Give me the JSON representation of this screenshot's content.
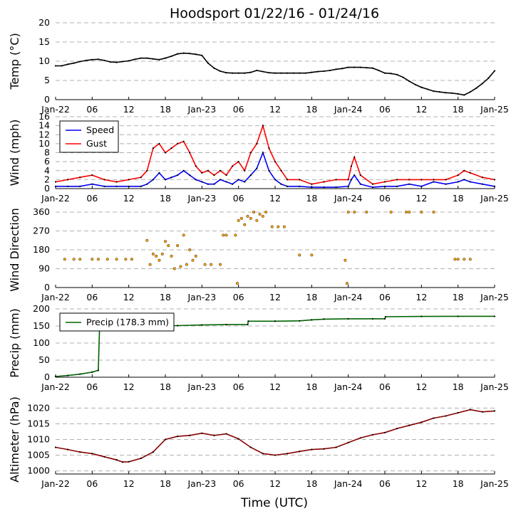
{
  "title": "Hoodsport 01/22/16 - 01/24/16",
  "xlabel": "Time (UTC)",
  "x_ticks": [
    "Jan-22",
    "06",
    "12",
    "18",
    "Jan-23",
    "06",
    "12",
    "18",
    "Jan-24",
    "06",
    "12",
    "18",
    "Jan-25"
  ],
  "chart_data": [
    {
      "type": "line",
      "ylabel": "Temp (°C)",
      "ylim": [
        0,
        20
      ],
      "yticks": [
        0,
        5,
        10,
        15,
        20
      ],
      "grid": true,
      "x_unit": "hours since Jan-22 00 UTC",
      "series": [
        {
          "name": "",
          "color": "#000000",
          "x": [
            0,
            1,
            2,
            3,
            4,
            5,
            6,
            7,
            8,
            9,
            10,
            11,
            12,
            13,
            14,
            15,
            16,
            17,
            18,
            19,
            20,
            21,
            22,
            23,
            24,
            25,
            26,
            27,
            28,
            29,
            30,
            31,
            32,
            33,
            34,
            35,
            36,
            37,
            38,
            39,
            40,
            41,
            42,
            43,
            44,
            45,
            46,
            47,
            48,
            49,
            50,
            51,
            52,
            53,
            54,
            55,
            56,
            57,
            58,
            59,
            60,
            61,
            62,
            63,
            64,
            65,
            66,
            67,
            68,
            69,
            70,
            71,
            72
          ],
          "y": [
            8.8,
            8.8,
            9.2,
            9.5,
            9.9,
            10.2,
            10.4,
            10.5,
            10.2,
            9.8,
            9.7,
            9.9,
            10.1,
            10.5,
            10.8,
            10.8,
            10.6,
            10.4,
            10.8,
            11.3,
            11.9,
            12.1,
            12.0,
            11.8,
            11.5,
            9.5,
            8.2,
            7.4,
            7.0,
            6.9,
            6.9,
            6.9,
            7.1,
            7.6,
            7.3,
            7.0,
            6.9,
            6.9,
            6.9,
            6.9,
            6.9,
            6.9,
            7.1,
            7.3,
            7.4,
            7.6,
            7.9,
            8.1,
            8.4,
            8.4,
            8.4,
            8.3,
            8.2,
            7.6,
            6.9,
            6.8,
            6.5,
            5.8,
            4.8,
            3.9,
            3.2,
            2.7,
            2.2,
            2.0,
            1.8,
            1.7,
            1.5,
            1.2,
            2.0,
            3.0,
            4.2,
            5.6,
            7.5
          ]
        }
      ]
    },
    {
      "type": "line",
      "ylabel": "Wind (mph)",
      "ylim": [
        0,
        16
      ],
      "yticks": [
        0,
        2,
        4,
        6,
        8,
        10,
        12,
        14,
        16
      ],
      "grid": true,
      "legend": "top-left",
      "series": [
        {
          "name": "Speed",
          "color": "#0000ff",
          "x": [
            0,
            2,
            4,
            6,
            8,
            10,
            12,
            14,
            15,
            16,
            17,
            18,
            19,
            20,
            21,
            22,
            23,
            24,
            25,
            26,
            27,
            28,
            29,
            30,
            31,
            32,
            33,
            34,
            35,
            36,
            37,
            38,
            40,
            42,
            44,
            46,
            48,
            48.5,
            49,
            50,
            52,
            54,
            56,
            58,
            60,
            62,
            64,
            66,
            67,
            68,
            70,
            72
          ],
          "y": [
            0.5,
            0.5,
            0.5,
            1.0,
            0.5,
            0.5,
            0.5,
            0.5,
            1.0,
            2.0,
            3.5,
            2.0,
            2.5,
            3.0,
            4.0,
            3.0,
            2.0,
            1.5,
            1.0,
            1.0,
            2.0,
            1.5,
            1.0,
            2.0,
            1.5,
            3.0,
            4.5,
            8.0,
            4.0,
            2.0,
            1.0,
            0.5,
            0.5,
            0.3,
            0.3,
            0.3,
            0.5,
            2.0,
            3.0,
            1.0,
            0.3,
            0.5,
            0.5,
            1.0,
            0.5,
            1.5,
            1.0,
            1.5,
            2.0,
            1.5,
            1.0,
            0.5
          ]
        },
        {
          "name": "Gust",
          "color": "#ff0000",
          "x": [
            0,
            2,
            4,
            6,
            8,
            10,
            12,
            14,
            15,
            16,
            17,
            18,
            19,
            20,
            21,
            22,
            23,
            24,
            25,
            26,
            27,
            28,
            29,
            30,
            31,
            32,
            33,
            34,
            35,
            36,
            37,
            38,
            40,
            42,
            44,
            46,
            48,
            48.5,
            49,
            50,
            52,
            54,
            56,
            58,
            60,
            62,
            64,
            66,
            67,
            68,
            70,
            72
          ],
          "y": [
            1.5,
            2.0,
            2.5,
            3.0,
            2.0,
            1.5,
            2.0,
            2.5,
            4.0,
            9.0,
            10.0,
            8.0,
            9.0,
            10.0,
            10.5,
            8.0,
            5.0,
            3.5,
            4.0,
            3.0,
            4.0,
            3.0,
            5.0,
            6.0,
            4.0,
            8.0,
            10.0,
            14.0,
            9.0,
            6.0,
            4.0,
            2.0,
            2.0,
            1.0,
            1.5,
            2.0,
            2.0,
            5.0,
            7.0,
            3.0,
            1.0,
            1.5,
            2.0,
            2.0,
            2.0,
            2.0,
            2.0,
            3.0,
            4.0,
            3.5,
            2.5,
            2.0
          ]
        }
      ]
    },
    {
      "type": "scatter",
      "ylabel": "Wind Direction",
      "ylim": [
        0,
        360
      ],
      "yticks": [
        0,
        90,
        180,
        270,
        360
      ],
      "grid": true,
      "series": [
        {
          "name": "",
          "color": "#ffa500",
          "x": [
            1.5,
            3,
            4,
            6,
            7,
            8.5,
            10,
            11.5,
            12.5,
            15,
            15.5,
            16,
            16.5,
            17,
            17.5,
            18,
            18.5,
            19,
            19.5,
            20,
            20.5,
            21,
            21.5,
            22,
            22.5,
            23,
            24.5,
            25.5,
            27,
            27.5,
            28,
            29.5,
            29.8,
            30,
            30.5,
            31,
            31.5,
            32,
            32.5,
            33,
            33.5,
            34,
            34.5,
            35.5,
            36.5,
            37.5,
            40,
            42,
            47.5,
            47.8,
            48,
            49,
            51,
            55,
            57.5,
            58,
            60,
            62,
            65.5,
            66,
            67,
            68
          ],
          "y": [
            135,
            135,
            135,
            135,
            135,
            135,
            135,
            135,
            135,
            225,
            110,
            160,
            150,
            130,
            160,
            220,
            200,
            150,
            90,
            200,
            100,
            250,
            110,
            180,
            130,
            150,
            110,
            110,
            110,
            250,
            250,
            250,
            20,
            320,
            330,
            300,
            340,
            330,
            360,
            320,
            350,
            340,
            360,
            290,
            290,
            290,
            155,
            155,
            130,
            20,
            360,
            360,
            360,
            360,
            360,
            360,
            360,
            360,
            135,
            135,
            135,
            135
          ]
        }
      ]
    },
    {
      "type": "line",
      "ylabel": "Precip (mm)",
      "ylim": [
        0,
        200
      ],
      "yticks": [
        0,
        50,
        100,
        150,
        200
      ],
      "grid": true,
      "legend": "top-left",
      "series": [
        {
          "name": "Precip (178.3 mm)",
          "color": "#006400",
          "x": [
            0,
            2,
            4,
            6,
            7,
            7.2,
            8,
            10,
            12,
            14,
            16,
            18,
            20,
            24,
            28,
            31.5,
            31.6,
            36,
            40,
            42,
            44,
            48,
            52,
            54,
            54.1,
            60,
            66,
            72
          ],
          "y": [
            2,
            5,
            9,
            15,
            20,
            138,
            141,
            142,
            143,
            147,
            149,
            150,
            151,
            153,
            154,
            154,
            164,
            164,
            165,
            168,
            170,
            171,
            171,
            171,
            177,
            178,
            178.3,
            178.3
          ]
        }
      ]
    },
    {
      "type": "line",
      "ylabel": "Altimeter (hPa)",
      "ylim": [
        999,
        1021
      ],
      "yticks": [
        1000,
        1005,
        1010,
        1015,
        1020
      ],
      "grid": true,
      "series": [
        {
          "name": "",
          "color": "#8b0000",
          "x": [
            0,
            2,
            4,
            6,
            8,
            10,
            11,
            12,
            14,
            16,
            18,
            20,
            22,
            24,
            26,
            28,
            30,
            32,
            34,
            36,
            38,
            40,
            42,
            44,
            46,
            48,
            50,
            52,
            54,
            56,
            58,
            60,
            62,
            64,
            66,
            68,
            70,
            72
          ],
          "y": [
            1007.5,
            1006.8,
            1006,
            1005.5,
            1004.5,
            1003.5,
            1002.8,
            1002.9,
            1004,
            1006,
            1010,
            1011,
            1011.3,
            1012,
            1011.3,
            1011.8,
            1010.2,
            1007.5,
            1005.5,
            1005,
            1005.5,
            1006.2,
            1006.8,
            1007,
            1007.5,
            1009,
            1010.5,
            1011.5,
            1012.2,
            1013.5,
            1014.5,
            1015.5,
            1016.8,
            1017.5,
            1018.5,
            1019.5,
            1018.8,
            1019.1
          ]
        }
      ]
    }
  ]
}
